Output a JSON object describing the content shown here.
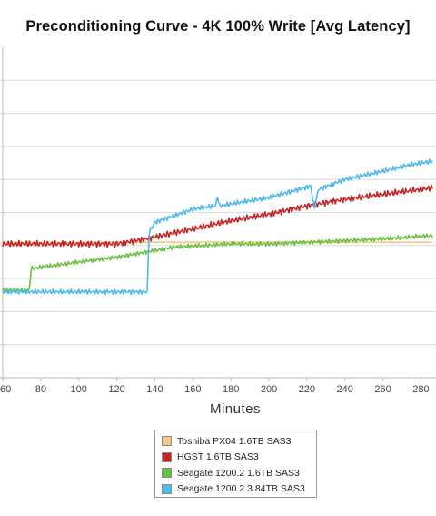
{
  "chart_data": {
    "type": "line",
    "title": "Preconditioning Curve - 4K 100% Write [Avg Latency]",
    "xlabel": "Minutes",
    "ylabel": "",
    "xlim": [
      60,
      286
    ],
    "ylim": [
      0,
      10
    ],
    "x_ticks": [
      "60",
      "80",
      "100",
      "120",
      "140",
      "160",
      "180",
      "200",
      "220",
      "240",
      "260",
      "280"
    ],
    "x_tick_values": [
      60,
      80,
      100,
      120,
      140,
      160,
      180,
      200,
      220,
      240,
      260,
      280
    ],
    "y_gridlines": [
      1,
      2,
      3,
      4,
      5,
      6,
      7,
      8,
      9
    ],
    "grid": true,
    "legend_position": "bottom",
    "series": [
      {
        "name": "Toshiba PX04 1.6TB SAS3",
        "color": "#f5c88c",
        "noise": 0.02,
        "points": [
          [
            60,
            4.08
          ],
          [
            150,
            4.1
          ],
          [
            200,
            4.1
          ],
          [
            240,
            4.1
          ],
          [
            286,
            4.1
          ]
        ]
      },
      {
        "name": "HGST 1.6TB SAS3",
        "color": "#c42424",
        "noise": 0.1,
        "points": [
          [
            60,
            4.05
          ],
          [
            120,
            4.05
          ],
          [
            135,
            4.2
          ],
          [
            160,
            4.5
          ],
          [
            180,
            4.75
          ],
          [
            200,
            4.95
          ],
          [
            220,
            5.2
          ],
          [
            240,
            5.4
          ],
          [
            260,
            5.55
          ],
          [
            280,
            5.7
          ],
          [
            286,
            5.75
          ]
        ]
      },
      {
        "name": "Seagate 1200.2 1.6TB SAS3",
        "color": "#6cc040",
        "noise": 0.07,
        "points": [
          [
            60,
            2.65
          ],
          [
            74,
            2.65
          ],
          [
            75,
            3.3
          ],
          [
            100,
            3.5
          ],
          [
            120,
            3.65
          ],
          [
            135,
            3.8
          ],
          [
            150,
            3.95
          ],
          [
            180,
            4.05
          ],
          [
            200,
            4.05
          ],
          [
            220,
            4.1
          ],
          [
            240,
            4.15
          ],
          [
            260,
            4.2
          ],
          [
            286,
            4.3
          ]
        ]
      },
      {
        "name": "Seagate 1200.2 3.84TB SAS3",
        "color": "#4db8ea",
        "noise": 0.08,
        "points": [
          [
            60,
            2.6
          ],
          [
            100,
            2.6
          ],
          [
            136,
            2.6
          ],
          [
            137,
            4.4
          ],
          [
            140,
            4.7
          ],
          [
            160,
            5.1
          ],
          [
            172,
            5.2
          ],
          [
            173,
            5.5
          ],
          [
            174,
            5.2
          ],
          [
            200,
            5.45
          ],
          [
            222,
            5.8
          ],
          [
            224,
            5.1
          ],
          [
            226,
            5.7
          ],
          [
            240,
            6.0
          ],
          [
            260,
            6.25
          ],
          [
            275,
            6.45
          ],
          [
            286,
            6.55
          ]
        ]
      }
    ]
  }
}
